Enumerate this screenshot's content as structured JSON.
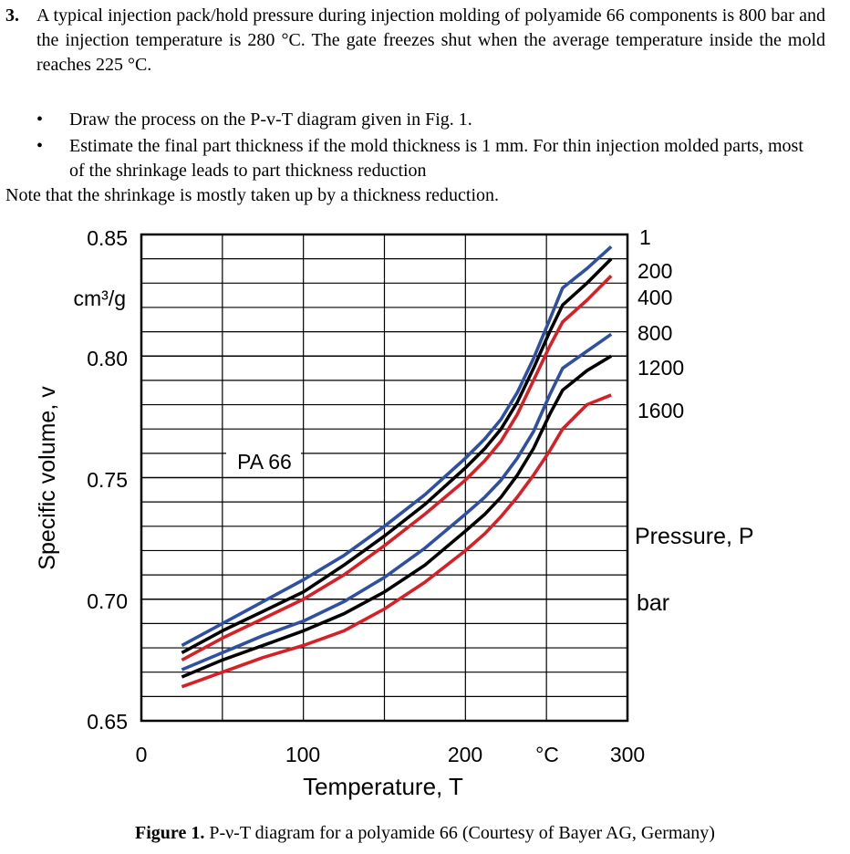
{
  "problem": {
    "number": "3.",
    "text": "A typical injection pack/hold pressure during injection molding of polyamide 66 components is 800 bar and the injection temperature is 280 °C. The gate freezes shut when the average temperature inside the mold reaches 225 °C.",
    "bullets": [
      "Draw the process on the P-v-T diagram given in Fig. 1.",
      "Estimate the final part thickness if the mold thickness is 1 mm. For thin injection molded parts, most of the shrinkage leads to part thickness reduction"
    ],
    "note": "Note that the shrinkage is mostly taken up by a thickness reduction."
  },
  "chart_data": {
    "type": "line",
    "material_label": "PA 66",
    "xlabel": "Temperature, T",
    "x_unit_label": "°C",
    "x_ticks": [
      "0",
      "100",
      "200",
      "300"
    ],
    "xlim": [
      0,
      300
    ],
    "ylabel": "Specific volume, v",
    "y_unit_label": "cm³/g",
    "y_ticks": [
      "0.85",
      "0.80",
      "0.75",
      "0.70",
      "0.65"
    ],
    "ylim": [
      0.65,
      0.85
    ],
    "legend_title": "Pressure, P",
    "legend_unit": "bar",
    "series": [
      {
        "name": "1",
        "color": "#2e4fa2",
        "x": [
          25,
          50,
          75,
          100,
          125,
          150,
          175,
          200,
          212,
          222,
          232,
          242,
          252,
          260,
          275,
          290
        ],
        "y": [
          0.681,
          0.69,
          0.699,
          0.708,
          0.718,
          0.73,
          0.743,
          0.758,
          0.766,
          0.774,
          0.785,
          0.799,
          0.815,
          0.828,
          0.836,
          0.845
        ]
      },
      {
        "name": "200",
        "color": "#000000",
        "x": [
          25,
          50,
          75,
          100,
          125,
          150,
          175,
          200,
          212,
          222,
          232,
          242,
          252,
          260,
          275,
          290
        ],
        "y": [
          0.678,
          0.687,
          0.695,
          0.703,
          0.714,
          0.726,
          0.739,
          0.754,
          0.762,
          0.77,
          0.781,
          0.795,
          0.81,
          0.821,
          0.83,
          0.84
        ]
      },
      {
        "name": "400",
        "color": "#d81f26",
        "x": [
          25,
          50,
          75,
          100,
          125,
          150,
          175,
          200,
          212,
          222,
          232,
          242,
          252,
          260,
          275,
          290
        ],
        "y": [
          0.675,
          0.684,
          0.692,
          0.7,
          0.71,
          0.722,
          0.735,
          0.749,
          0.757,
          0.765,
          0.776,
          0.79,
          0.804,
          0.814,
          0.823,
          0.833
        ]
      },
      {
        "name": "800",
        "color": "#2e4fa2",
        "x": [
          25,
          50,
          75,
          100,
          125,
          150,
          175,
          200,
          212,
          222,
          232,
          242,
          252,
          260,
          275,
          290
        ],
        "y": [
          0.671,
          0.678,
          0.685,
          0.691,
          0.699,
          0.709,
          0.721,
          0.735,
          0.742,
          0.749,
          0.758,
          0.769,
          0.784,
          0.795,
          0.802,
          0.809
        ]
      },
      {
        "name": "1200",
        "color": "#000000",
        "x": [
          25,
          50,
          75,
          100,
          125,
          150,
          175,
          200,
          212,
          222,
          232,
          242,
          252,
          260,
          275,
          290
        ],
        "y": [
          0.668,
          0.675,
          0.681,
          0.687,
          0.694,
          0.703,
          0.714,
          0.728,
          0.735,
          0.742,
          0.751,
          0.762,
          0.776,
          0.786,
          0.794,
          0.8
        ]
      },
      {
        "name": "1600",
        "color": "#d81f26",
        "x": [
          25,
          50,
          75,
          100,
          125,
          150,
          175,
          200,
          212,
          222,
          232,
          242,
          252,
          260,
          275,
          290
        ],
        "y": [
          0.664,
          0.67,
          0.676,
          0.681,
          0.687,
          0.696,
          0.707,
          0.72,
          0.727,
          0.734,
          0.742,
          0.751,
          0.761,
          0.77,
          0.78,
          0.784
        ]
      }
    ]
  },
  "caption": {
    "label": "Figure 1.",
    "text": " P-ν-T diagram for a polyamide 66 (Courtesy of Bayer AG, Germany)"
  }
}
